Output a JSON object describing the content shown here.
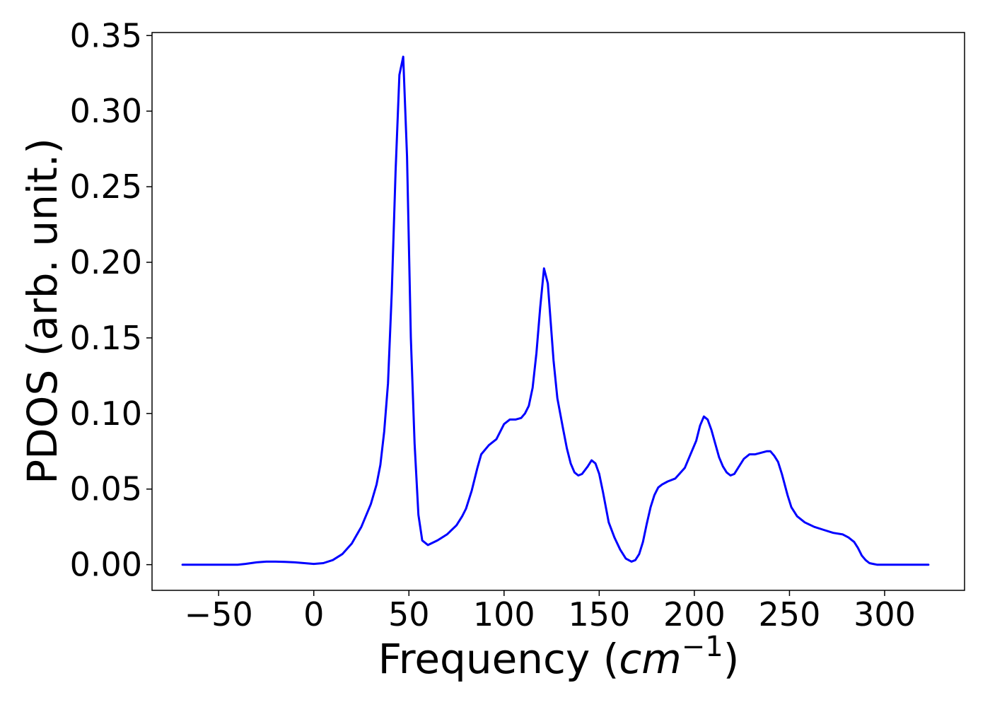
{
  "chart_data": {
    "type": "line",
    "title": "",
    "xlabel": "Frequency",
    "xlabel_unit": "cm",
    "xlabel_exponent": "−1",
    "ylabel": "PDOS (arb. unit.)",
    "xlim": [
      -85,
      342
    ],
    "ylim": [
      -0.017,
      0.352
    ],
    "xticks": [
      -50,
      0,
      50,
      100,
      150,
      200,
      250,
      300
    ],
    "xtick_labels": [
      "−50",
      "0",
      "50",
      "100",
      "150",
      "200",
      "250",
      "300"
    ],
    "yticks": [
      0.0,
      0.05,
      0.1,
      0.15,
      0.2,
      0.25,
      0.3,
      0.35
    ],
    "ytick_labels": [
      "0.00",
      "0.05",
      "0.10",
      "0.15",
      "0.20",
      "0.25",
      "0.30",
      "0.35"
    ],
    "grid": false,
    "legend": "none",
    "series": [
      {
        "color": "#0000ff",
        "x": [
          -69,
          -40,
          -36,
          -30,
          -25,
          -20,
          -15,
          -10,
          -5,
          0,
          5,
          10,
          15,
          20,
          25,
          30,
          33,
          35,
          37,
          39,
          41,
          43,
          45,
          47,
          49,
          51,
          53,
          55,
          57,
          60,
          65,
          70,
          75,
          78,
          80,
          83,
          86,
          88,
          92,
          96,
          100,
          103,
          106,
          109,
          111,
          113,
          115,
          117,
          119,
          121,
          123,
          126,
          128,
          131,
          133,
          135,
          137,
          139,
          141,
          144,
          146,
          148,
          150,
          152,
          155,
          158,
          161,
          164,
          167,
          169,
          171,
          173,
          175,
          177,
          179,
          181,
          183,
          186,
          190,
          195,
          198,
          201,
          203,
          205,
          207,
          209,
          211,
          213,
          215,
          217,
          219,
          221,
          223,
          226,
          229,
          232,
          235,
          238,
          240,
          242,
          244,
          246,
          249,
          251,
          254,
          258,
          263,
          268,
          273,
          278,
          281,
          284,
          286,
          288,
          290,
          292,
          294,
          296,
          300,
          310,
          323
        ],
        "y": [
          0.0,
          0.0,
          0.0005,
          0.0015,
          0.002,
          0.002,
          0.0018,
          0.0015,
          0.001,
          0.0005,
          0.001,
          0.003,
          0.007,
          0.014,
          0.025,
          0.04,
          0.053,
          0.066,
          0.088,
          0.12,
          0.18,
          0.26,
          0.324,
          0.336,
          0.27,
          0.15,
          0.08,
          0.033,
          0.016,
          0.013,
          0.016,
          0.02,
          0.026,
          0.032,
          0.037,
          0.049,
          0.064,
          0.073,
          0.079,
          0.083,
          0.093,
          0.096,
          0.096,
          0.097,
          0.1,
          0.105,
          0.117,
          0.14,
          0.17,
          0.196,
          0.186,
          0.135,
          0.11,
          0.09,
          0.077,
          0.067,
          0.061,
          0.059,
          0.06,
          0.065,
          0.069,
          0.067,
          0.06,
          0.048,
          0.028,
          0.018,
          0.01,
          0.004,
          0.002,
          0.003,
          0.007,
          0.015,
          0.027,
          0.038,
          0.046,
          0.051,
          0.053,
          0.055,
          0.057,
          0.064,
          0.073,
          0.082,
          0.092,
          0.098,
          0.096,
          0.089,
          0.08,
          0.071,
          0.065,
          0.061,
          0.059,
          0.06,
          0.064,
          0.07,
          0.073,
          0.073,
          0.074,
          0.075,
          0.075,
          0.072,
          0.068,
          0.06,
          0.046,
          0.038,
          0.032,
          0.028,
          0.025,
          0.023,
          0.021,
          0.02,
          0.018,
          0.015,
          0.011,
          0.006,
          0.003,
          0.001,
          0.0005,
          0.0,
          0.0,
          0.0,
          0.0
        ]
      }
    ]
  }
}
